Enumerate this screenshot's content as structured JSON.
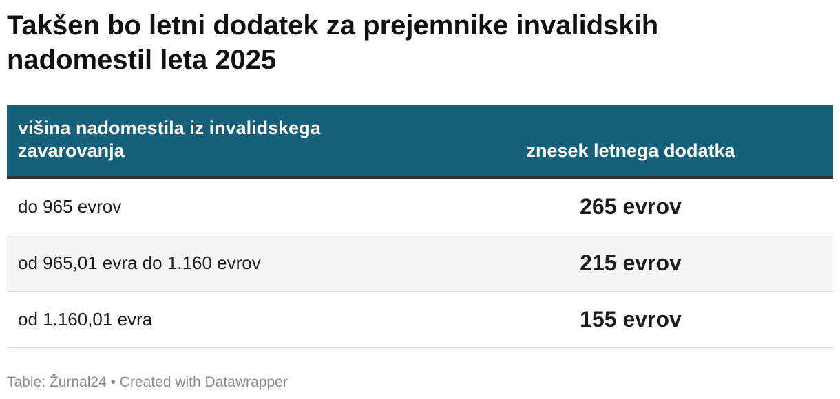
{
  "header": {
    "title": "Takšen bo letni dodatek za prejemnike invalidskih nadomestil leta 2025"
  },
  "table": {
    "columns": [
      "višina nadomestila iz invalidskega zavarovanja",
      "znesek letnega dodatka"
    ],
    "rows": [
      [
        "do 965 evrov",
        "265 evrov"
      ],
      [
        "od 965,01 evra do 1.160 evrov",
        "215 evrov"
      ],
      [
        "od 1.160,01 evra",
        "155 evrov"
      ]
    ]
  },
  "footer": {
    "source": "Table: Žurnal24 • Created with Datawrapper"
  }
}
